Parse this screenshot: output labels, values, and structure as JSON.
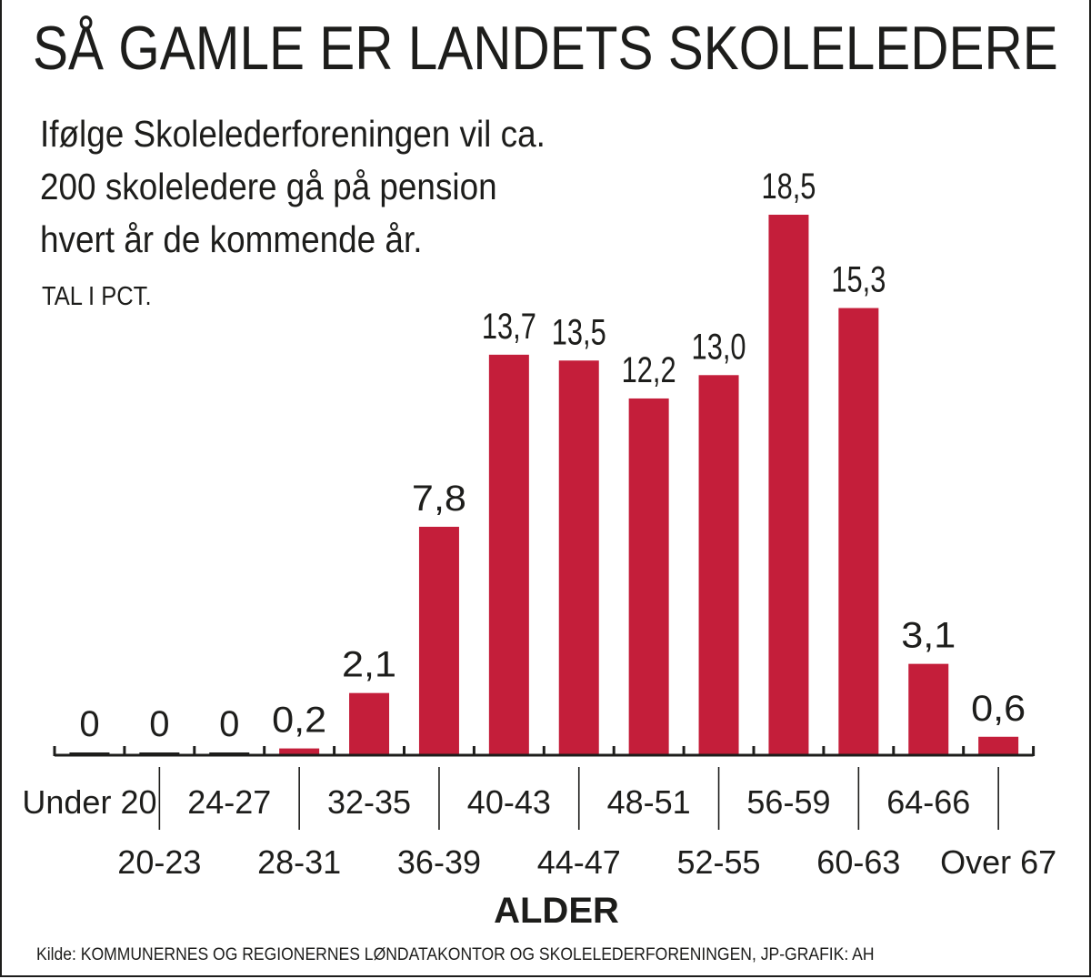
{
  "title": "SÅ GAMLE ER LANDETS SKOLELEDERE",
  "subtitle": "Ifølge Skolelederforeningen vil ca. 200 skoleledere gå på pension hvert år de kommende år.",
  "unit_label": "TAL I PCT.",
  "source": "Kilde: KOMMUNERNES OG REGIONERNES LØNDATAKONTOR OG SKOLELEDERFORENINGEN, JP-GRAFIK: AH",
  "colors": {
    "bar": "#c41e3a",
    "text": "#1d1d1b"
  },
  "chart_data": {
    "type": "bar",
    "title": "SÅ GAMLE ER LANDETS SKOLELEDERE",
    "xlabel": "ALDER",
    "ylabel": "",
    "categories": [
      "Under 20",
      "20-23",
      "24-27",
      "28-31",
      "32-35",
      "36-39",
      "40-43",
      "44-47",
      "48-51",
      "52-55",
      "56-59",
      "60-63",
      "64-66",
      "Over 67"
    ],
    "values": [
      0,
      0,
      0,
      0.2,
      2.1,
      7.8,
      13.7,
      13.5,
      12.2,
      13.0,
      18.5,
      15.3,
      3.1,
      0.6
    ],
    "value_labels": [
      "0",
      "0",
      "0",
      "0,2",
      "2,1",
      "7,8",
      "13,7",
      "13,5",
      "12,2",
      "13,0",
      "18,5",
      "15,3",
      "3,1",
      "0,6"
    ],
    "ylim": [
      0,
      18.5
    ],
    "grid": false,
    "legend": "none"
  }
}
